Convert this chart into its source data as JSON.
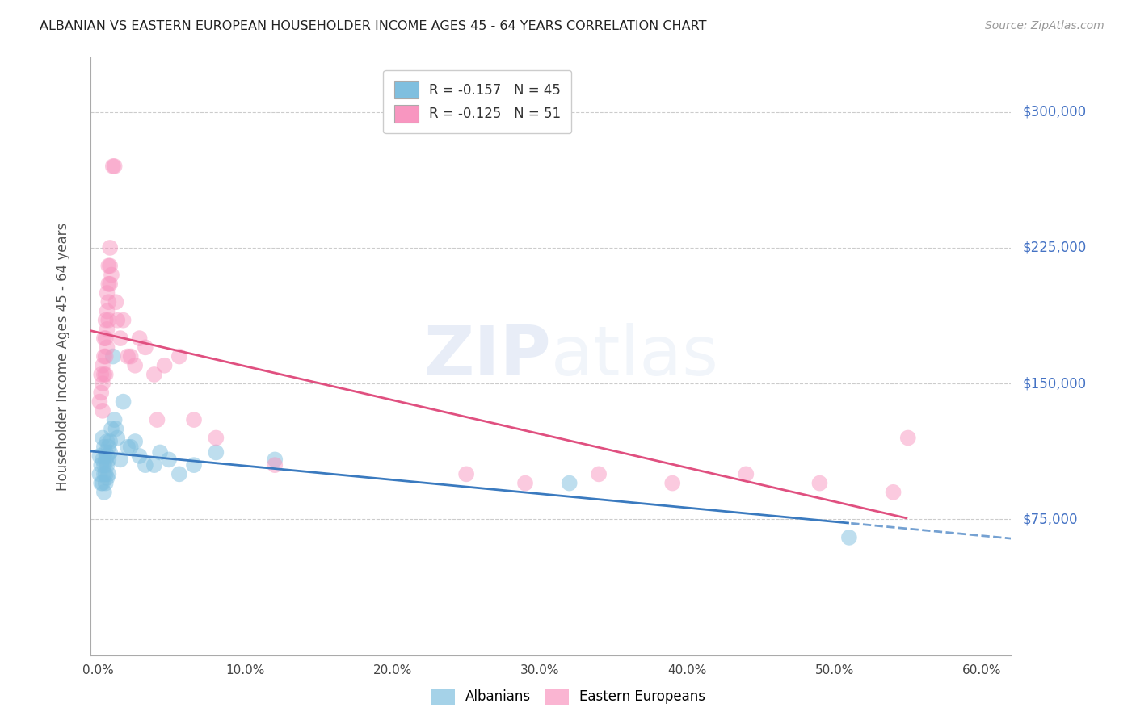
{
  "title": "ALBANIAN VS EASTERN EUROPEAN HOUSEHOLDER INCOME AGES 45 - 64 YEARS CORRELATION CHART",
  "source": "Source: ZipAtlas.com",
  "ylabel": "Householder Income Ages 45 - 64 years",
  "xlabel_ticks": [
    "0.0%",
    "10.0%",
    "20.0%",
    "30.0%",
    "40.0%",
    "50.0%",
    "60.0%"
  ],
  "xlabel_vals": [
    0.0,
    0.1,
    0.2,
    0.3,
    0.4,
    0.5,
    0.6
  ],
  "ytick_labels": [
    "$75,000",
    "$150,000",
    "$225,000",
    "$300,000"
  ],
  "ytick_vals": [
    75000,
    150000,
    225000,
    300000
  ],
  "ylim": [
    0,
    330000
  ],
  "xlim": [
    -0.005,
    0.62
  ],
  "albanian_color": "#7fbfdf",
  "eastern_color": "#f896c0",
  "albanian_line_color": "#3a7abf",
  "eastern_line_color": "#e05080",
  "legend_albanian_R": "-0.157",
  "legend_albanian_N": "45",
  "legend_eastern_R": "-0.125",
  "legend_eastern_N": "51",
  "watermark_zip": "ZIP",
  "watermark_atlas": "atlas",
  "albanians_x": [
    0.001,
    0.001,
    0.002,
    0.002,
    0.003,
    0.003,
    0.003,
    0.004,
    0.004,
    0.004,
    0.004,
    0.005,
    0.005,
    0.005,
    0.005,
    0.006,
    0.006,
    0.006,
    0.006,
    0.007,
    0.007,
    0.007,
    0.008,
    0.008,
    0.009,
    0.01,
    0.011,
    0.012,
    0.013,
    0.015,
    0.017,
    0.02,
    0.022,
    0.025,
    0.028,
    0.032,
    0.038,
    0.042,
    0.048,
    0.055,
    0.065,
    0.08,
    0.12,
    0.32,
    0.51
  ],
  "albanians_y": [
    110000,
    100000,
    105000,
    95000,
    120000,
    108000,
    95000,
    115000,
    105000,
    100000,
    90000,
    112000,
    108000,
    100000,
    95000,
    118000,
    110000,
    105000,
    98000,
    115000,
    108000,
    100000,
    118000,
    112000,
    125000,
    165000,
    130000,
    125000,
    120000,
    108000,
    140000,
    115000,
    115000,
    118000,
    110000,
    105000,
    105000,
    112000,
    108000,
    100000,
    105000,
    112000,
    108000,
    95000,
    65000
  ],
  "easterns_x": [
    0.001,
    0.002,
    0.002,
    0.003,
    0.003,
    0.003,
    0.004,
    0.004,
    0.004,
    0.005,
    0.005,
    0.005,
    0.005,
    0.006,
    0.006,
    0.006,
    0.006,
    0.007,
    0.007,
    0.007,
    0.007,
    0.008,
    0.008,
    0.008,
    0.009,
    0.01,
    0.011,
    0.012,
    0.013,
    0.015,
    0.017,
    0.02,
    0.022,
    0.025,
    0.028,
    0.032,
    0.038,
    0.04,
    0.045,
    0.055,
    0.065,
    0.08,
    0.12,
    0.25,
    0.29,
    0.34,
    0.39,
    0.44,
    0.49,
    0.54,
    0.55
  ],
  "easterns_y": [
    140000,
    155000,
    145000,
    160000,
    150000,
    135000,
    175000,
    165000,
    155000,
    185000,
    175000,
    165000,
    155000,
    200000,
    190000,
    180000,
    170000,
    215000,
    205000,
    195000,
    185000,
    225000,
    215000,
    205000,
    210000,
    270000,
    270000,
    195000,
    185000,
    175000,
    185000,
    165000,
    165000,
    160000,
    175000,
    170000,
    155000,
    130000,
    160000,
    165000,
    130000,
    120000,
    105000,
    100000,
    95000,
    100000,
    95000,
    100000,
    95000,
    90000,
    120000
  ]
}
